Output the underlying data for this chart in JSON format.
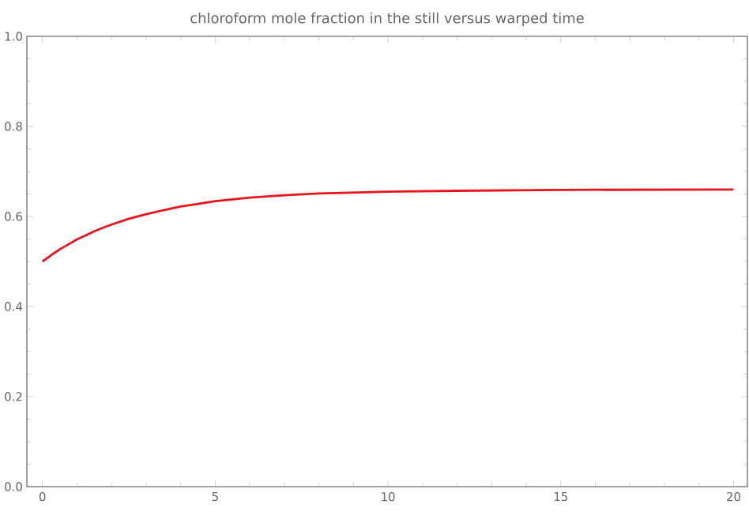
{
  "chart_data": {
    "type": "line",
    "title": "chloroform mole fraction in the still versus warped time",
    "xlim": [
      -0.45,
      20.4
    ],
    "ylim": [
      0,
      1
    ],
    "xticks": [
      0,
      5,
      10,
      15,
      20
    ],
    "yticks": [
      {
        "value": 0,
        "label": "0.0"
      },
      0.2,
      0.4,
      0.6,
      0.8,
      {
        "value": 1,
        "label": "1.0"
      }
    ],
    "series": [
      {
        "color": "#e8141c",
        "x": [
          0,
          0.25,
          0.5,
          0.75,
          1,
          1.25,
          1.5,
          1.75,
          2,
          2.5,
          3,
          3.5,
          4,
          4.5,
          5,
          6,
          7,
          8,
          10,
          12,
          15,
          20
        ],
        "values": [
          0.5,
          0.514,
          0.527,
          0.538,
          0.549,
          0.558,
          0.567,
          0.575,
          0.582,
          0.595,
          0.605,
          0.614,
          0.622,
          0.628,
          0.634,
          0.642,
          0.647,
          0.651,
          0.655,
          0.657,
          0.659,
          0.66
        ]
      }
    ],
    "grid": false,
    "marker": "none",
    "line_style": "solid"
  }
}
